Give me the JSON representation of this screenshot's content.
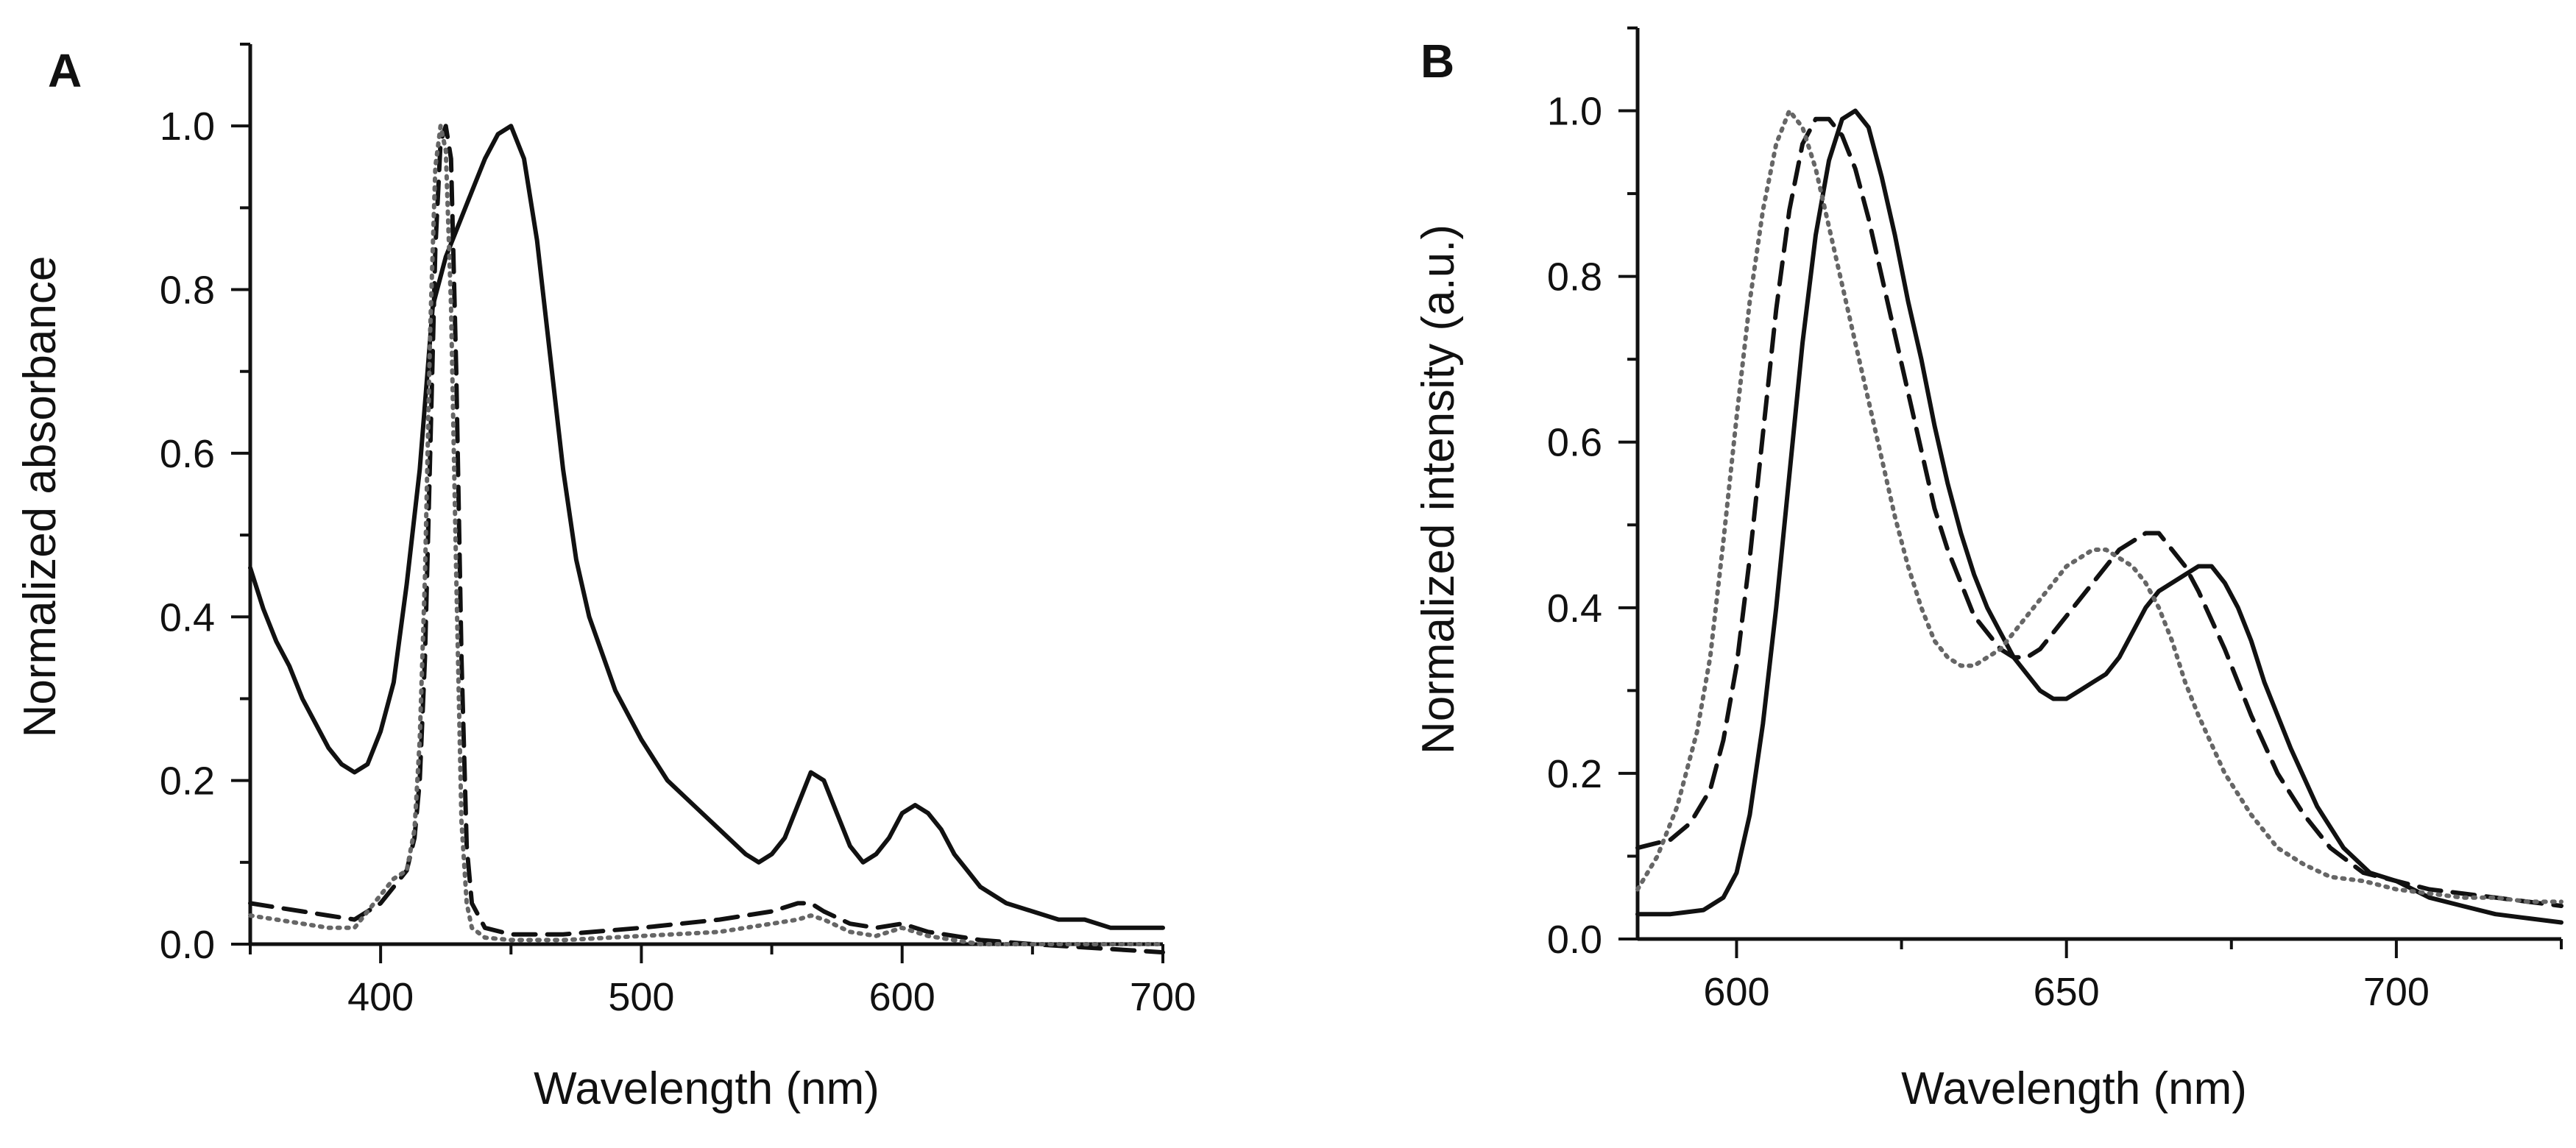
{
  "chart_data": [
    {
      "type": "line",
      "panel_label": "A",
      "xlabel": "Wavelength (nm)",
      "ylabel": "Normalized absorbance",
      "xlim": [
        350,
        700
      ],
      "ylim": [
        0.0,
        1.1
      ],
      "x_ticks": [
        400,
        500,
        600,
        700
      ],
      "x_tick_labels": [
        "400",
        "500",
        "600",
        "700"
      ],
      "y_ticks": [
        0.0,
        0.2,
        0.4,
        0.6,
        0.8,
        1.0
      ],
      "y_tick_labels": [
        "0.0",
        "0.2",
        "0.4",
        "0.6",
        "0.8",
        "1.0"
      ],
      "series": [
        {
          "name": "solid",
          "style": "solid",
          "color": "#111111",
          "x": [
            350,
            355,
            360,
            365,
            370,
            375,
            380,
            385,
            390,
            395,
            400,
            405,
            410,
            415,
            420,
            425,
            430,
            435,
            440,
            445,
            450,
            455,
            460,
            465,
            470,
            475,
            480,
            490,
            500,
            510,
            520,
            530,
            540,
            545,
            550,
            555,
            560,
            565,
            570,
            575,
            580,
            585,
            590,
            595,
            600,
            605,
            610,
            615,
            620,
            625,
            630,
            640,
            650,
            660,
            670,
            680,
            690,
            700
          ],
          "y": [
            0.46,
            0.41,
            0.37,
            0.34,
            0.3,
            0.27,
            0.24,
            0.22,
            0.21,
            0.22,
            0.26,
            0.32,
            0.44,
            0.58,
            0.78,
            0.84,
            0.88,
            0.92,
            0.96,
            0.99,
            1.0,
            0.96,
            0.86,
            0.72,
            0.58,
            0.47,
            0.4,
            0.31,
            0.25,
            0.2,
            0.17,
            0.14,
            0.11,
            0.1,
            0.11,
            0.13,
            0.17,
            0.21,
            0.2,
            0.16,
            0.12,
            0.1,
            0.11,
            0.13,
            0.16,
            0.17,
            0.16,
            0.14,
            0.11,
            0.09,
            0.07,
            0.05,
            0.04,
            0.03,
            0.03,
            0.02,
            0.02,
            0.02
          ]
        },
        {
          "name": "dashed",
          "style": "dashed",
          "color": "#111111",
          "x": [
            350,
            360,
            370,
            380,
            390,
            400,
            405,
            410,
            413,
            415,
            417,
            419,
            421,
            423,
            425,
            427,
            429,
            431,
            433,
            435,
            440,
            450,
            470,
            500,
            530,
            550,
            560,
            565,
            570,
            580,
            590,
            600,
            610,
            630,
            650,
            700
          ],
          "y": [
            0.05,
            0.045,
            0.04,
            0.035,
            0.03,
            0.05,
            0.07,
            0.09,
            0.13,
            0.2,
            0.35,
            0.6,
            0.85,
            0.98,
            1.0,
            0.96,
            0.7,
            0.35,
            0.12,
            0.05,
            0.02,
            0.012,
            0.012,
            0.02,
            0.03,
            0.04,
            0.05,
            0.05,
            0.04,
            0.025,
            0.02,
            0.025,
            0.015,
            0.005,
            0.0,
            -0.01
          ]
        },
        {
          "name": "dotted",
          "style": "dotted",
          "color": "#666666",
          "x": [
            350,
            360,
            370,
            380,
            390,
            400,
            405,
            410,
            413,
            415,
            417,
            419,
            421,
            423,
            425,
            427,
            429,
            431,
            433,
            435,
            440,
            450,
            470,
            500,
            530,
            550,
            560,
            565,
            570,
            580,
            590,
            600,
            610,
            630,
            650,
            700
          ],
          "y": [
            0.035,
            0.03,
            0.025,
            0.02,
            0.02,
            0.06,
            0.08,
            0.09,
            0.14,
            0.25,
            0.45,
            0.75,
            0.95,
            1.0,
            0.97,
            0.78,
            0.45,
            0.15,
            0.05,
            0.02,
            0.008,
            0.005,
            0.005,
            0.01,
            0.015,
            0.025,
            0.03,
            0.035,
            0.03,
            0.015,
            0.01,
            0.02,
            0.01,
            0.0,
            0.0,
            0.0
          ]
        }
      ]
    },
    {
      "type": "line",
      "panel_label": "B",
      "xlabel": "Wavelength (nm)",
      "ylabel": "Normalized intensity (a.u.)",
      "xlim": [
        585,
        725
      ],
      "ylim": [
        0.0,
        1.1
      ],
      "x_ticks": [
        600,
        650,
        700
      ],
      "x_tick_labels": [
        "600",
        "650",
        "700"
      ],
      "y_ticks": [
        0.0,
        0.2,
        0.4,
        0.6,
        0.8,
        1.0
      ],
      "y_tick_labels": [
        "0.0",
        "0.2",
        "0.4",
        "0.6",
        "0.8",
        "1.0"
      ],
      "series": [
        {
          "name": "solid",
          "style": "solid",
          "color": "#111111",
          "x": [
            585,
            590,
            595,
            598,
            600,
            602,
            604,
            606,
            608,
            610,
            612,
            614,
            616,
            618,
            620,
            622,
            624,
            626,
            628,
            630,
            632,
            634,
            636,
            638,
            640,
            642,
            644,
            646,
            648,
            650,
            652,
            654,
            656,
            658,
            660,
            662,
            664,
            666,
            668,
            670,
            672,
            674,
            676,
            678,
            680,
            684,
            688,
            692,
            696,
            700,
            705,
            710,
            715,
            720,
            725
          ],
          "y": [
            0.03,
            0.03,
            0.035,
            0.05,
            0.08,
            0.15,
            0.26,
            0.4,
            0.56,
            0.72,
            0.85,
            0.94,
            0.99,
            1.0,
            0.98,
            0.92,
            0.85,
            0.77,
            0.7,
            0.62,
            0.55,
            0.49,
            0.44,
            0.4,
            0.37,
            0.34,
            0.32,
            0.3,
            0.29,
            0.29,
            0.3,
            0.31,
            0.32,
            0.34,
            0.37,
            0.4,
            0.42,
            0.43,
            0.44,
            0.45,
            0.45,
            0.43,
            0.4,
            0.36,
            0.31,
            0.23,
            0.16,
            0.11,
            0.08,
            0.07,
            0.05,
            0.04,
            0.03,
            0.025,
            0.02
          ]
        },
        {
          "name": "dashed",
          "style": "dashed",
          "color": "#111111",
          "x": [
            585,
            590,
            593,
            596,
            598,
            600,
            602,
            604,
            606,
            608,
            610,
            612,
            614,
            616,
            618,
            620,
            622,
            624,
            626,
            628,
            630,
            632,
            634,
            636,
            638,
            640,
            642,
            644,
            646,
            648,
            650,
            652,
            654,
            656,
            658,
            660,
            662,
            664,
            666,
            668,
            670,
            674,
            678,
            682,
            686,
            690,
            695,
            700,
            705,
            710,
            715,
            720,
            725
          ],
          "y": [
            0.11,
            0.12,
            0.14,
            0.18,
            0.24,
            0.33,
            0.46,
            0.61,
            0.76,
            0.88,
            0.96,
            0.99,
            0.99,
            0.97,
            0.93,
            0.87,
            0.8,
            0.73,
            0.66,
            0.59,
            0.52,
            0.47,
            0.43,
            0.39,
            0.37,
            0.35,
            0.34,
            0.34,
            0.35,
            0.37,
            0.39,
            0.41,
            0.43,
            0.45,
            0.47,
            0.48,
            0.49,
            0.49,
            0.47,
            0.45,
            0.42,
            0.35,
            0.27,
            0.2,
            0.15,
            0.11,
            0.08,
            0.07,
            0.06,
            0.055,
            0.05,
            0.045,
            0.04
          ]
        },
        {
          "name": "dotted",
          "style": "dotted",
          "color": "#666666",
          "x": [
            585,
            588,
            591,
            594,
            596,
            598,
            600,
            602,
            604,
            606,
            608,
            610,
            612,
            614,
            616,
            618,
            620,
            622,
            624,
            626,
            628,
            630,
            632,
            634,
            636,
            638,
            640,
            642,
            644,
            646,
            648,
            650,
            652,
            654,
            656,
            658,
            660,
            662,
            664,
            666,
            668,
            670,
            674,
            678,
            682,
            686,
            690,
            695,
            700,
            705,
            710,
            715,
            720,
            725
          ],
          "y": [
            0.06,
            0.1,
            0.16,
            0.25,
            0.34,
            0.48,
            0.63,
            0.77,
            0.88,
            0.96,
            1.0,
            0.98,
            0.93,
            0.86,
            0.79,
            0.72,
            0.65,
            0.58,
            0.51,
            0.45,
            0.4,
            0.36,
            0.34,
            0.33,
            0.33,
            0.34,
            0.35,
            0.37,
            0.39,
            0.41,
            0.43,
            0.45,
            0.46,
            0.47,
            0.47,
            0.46,
            0.45,
            0.43,
            0.4,
            0.36,
            0.31,
            0.27,
            0.2,
            0.15,
            0.11,
            0.09,
            0.075,
            0.07,
            0.06,
            0.055,
            0.05,
            0.05,
            0.045,
            0.045
          ]
        }
      ]
    }
  ]
}
